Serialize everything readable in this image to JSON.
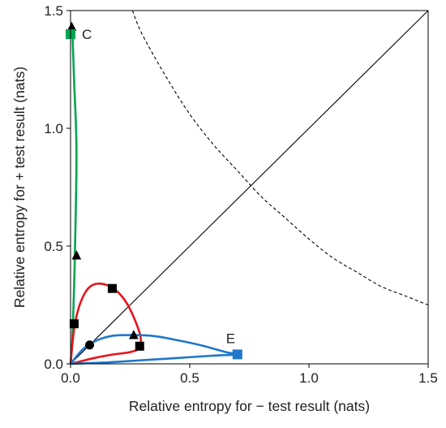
{
  "chart_data": {
    "type": "line",
    "title": "",
    "xlabel": "Relative entropy for − test result (nats)",
    "ylabel": "Relative entropy for + test result (nats)",
    "xlim": [
      0,
      1.5
    ],
    "ylim": [
      0,
      1.5
    ],
    "x_ticks": [
      "0.0",
      "0.5",
      "1.0",
      "1.5"
    ],
    "y_ticks": [
      "0.0",
      "0.5",
      "1.0",
      "1.5"
    ],
    "grid": false,
    "legend": "none",
    "reference_lines": [
      {
        "name": "identity",
        "style": "solid",
        "x": [
          0,
          1.5
        ],
        "y": [
          0,
          1.5
        ]
      },
      {
        "name": "boundary",
        "style": "dashed",
        "x": [
          0.26,
          0.3,
          0.4,
          0.5,
          0.6,
          0.7,
          0.8,
          0.9,
          1.0,
          1.1,
          1.2,
          1.3,
          1.4,
          1.5
        ],
        "y": [
          1.5,
          1.4,
          1.22,
          1.06,
          0.93,
          0.82,
          0.71,
          0.62,
          0.53,
          0.45,
          0.39,
          0.33,
          0.29,
          0.25
        ]
      }
    ],
    "series": [
      {
        "color": "#00a651",
        "x": [
          0.0,
          0.005,
          0.01,
          0.018,
          0.025,
          0.015,
          0.008,
          0.003,
          0.0
        ],
        "y": [
          0.0,
          0.06,
          0.17,
          0.46,
          0.9,
          1.2,
          1.4,
          1.43,
          1.4
        ],
        "markers": [
          {
            "shape": "triangle",
            "x": 0.005,
            "y": 1.43
          },
          {
            "shape": "triangle",
            "x": 0.025,
            "y": 0.46
          },
          {
            "shape": "square",
            "x": 0.015,
            "y": 0.17
          }
        ],
        "end_marker": {
          "shape": "square",
          "x": 0.0,
          "y": 1.4
        },
        "end_label": "C"
      },
      {
        "color": "#e8141b",
        "x": [
          0.0,
          0.02,
          0.06,
          0.11,
          0.18,
          0.24,
          0.29,
          0.29,
          0.25,
          0.18,
          0.1,
          0.04,
          0.0
        ],
        "y": [
          0.0,
          0.18,
          0.3,
          0.34,
          0.32,
          0.25,
          0.13,
          0.07,
          0.05,
          0.04,
          0.025,
          0.01,
          0.0
        ],
        "markers": [
          {
            "shape": "square",
            "x": 0.175,
            "y": 0.32
          },
          {
            "shape": "square",
            "x": 0.29,
            "y": 0.075
          },
          {
            "shape": "circle",
            "x": 0.08,
            "y": 0.08
          }
        ]
      },
      {
        "color": "#1f77c9",
        "x": [
          0.0,
          0.05,
          0.1,
          0.17,
          0.25,
          0.35,
          0.45,
          0.55,
          0.65,
          0.7,
          0.6,
          0.45,
          0.3,
          0.15,
          0.05,
          0.0
        ],
        "y": [
          0.0,
          0.06,
          0.095,
          0.118,
          0.122,
          0.118,
          0.1,
          0.078,
          0.05,
          0.04,
          0.035,
          0.025,
          0.015,
          0.006,
          0.002,
          0.0
        ],
        "markers": [
          {
            "shape": "triangle",
            "x": 0.265,
            "y": 0.122
          }
        ],
        "end_marker": {
          "shape": "square",
          "x": 0.7,
          "y": 0.04
        },
        "end_label": "E"
      }
    ]
  }
}
